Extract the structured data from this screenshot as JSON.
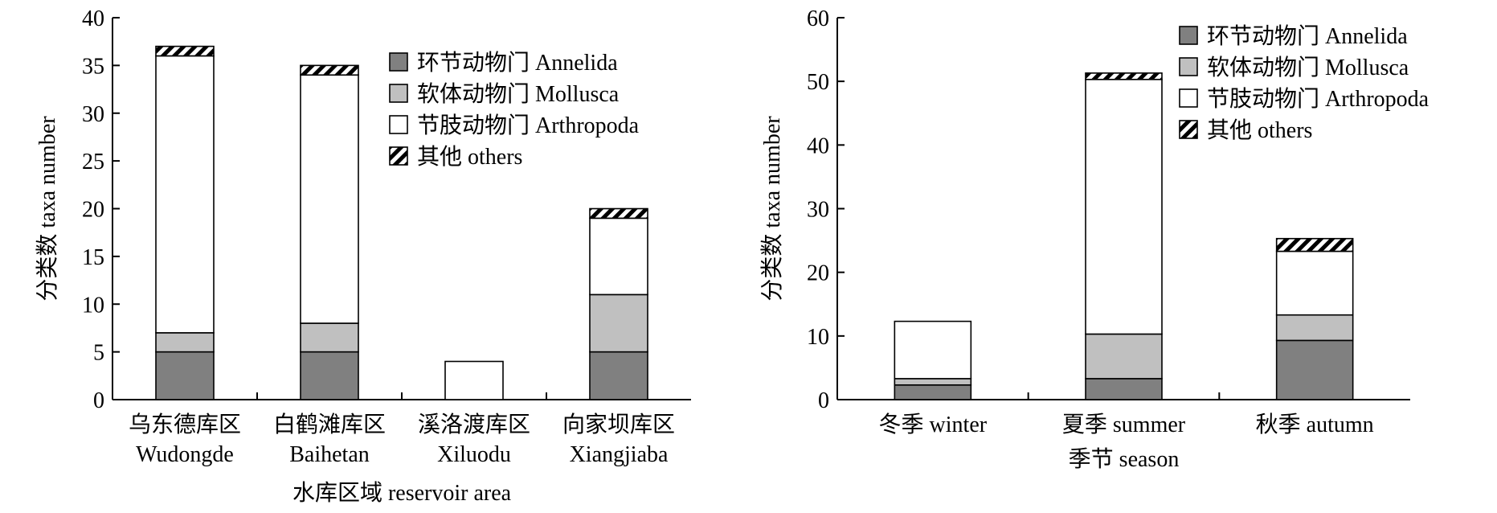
{
  "chart_data": [
    {
      "type": "bar",
      "stacked": true,
      "categories": [
        "乌东德库区\nWudongde",
        "白鹤滩库区\nBaihetan",
        "溪洛渡库区\nXiluodu",
        "向家坝库区\nXiangjiaba"
      ],
      "series": [
        {
          "name": "环节动物门 Annelida",
          "values": [
            5,
            5,
            0,
            5
          ]
        },
        {
          "name": "软体动物门 Mollusca",
          "values": [
            2,
            3,
            0,
            6
          ]
        },
        {
          "name": "节肢动物门 Arthropoda",
          "values": [
            29,
            26,
            4,
            8
          ]
        },
        {
          "name": "其他 others",
          "values": [
            1,
            1,
            0,
            1
          ]
        }
      ],
      "xlabel": "水库区域 reservoir area",
      "ylabel": "分类数 taxa number",
      "ylim": [
        0,
        40
      ],
      "yticks": [
        0,
        5,
        10,
        15,
        20,
        25,
        30,
        35,
        40
      ],
      "legend": "top-right",
      "grid": false
    },
    {
      "type": "bar",
      "stacked": true,
      "categories": [
        "冬季 winter",
        "夏季 summer",
        "秋季 autumn"
      ],
      "series": [
        {
          "name": "环节动物门 Annelida",
          "values": [
            2.3,
            3.3,
            9.3
          ]
        },
        {
          "name": "软体动物门 Mollusca",
          "values": [
            1,
            7,
            4
          ]
        },
        {
          "name": "节肢动物门 Arthropoda",
          "values": [
            9,
            40,
            10
          ]
        },
        {
          "name": "其他 others",
          "values": [
            0,
            1,
            2
          ]
        }
      ],
      "xlabel": "季节 season",
      "ylabel": "分类数 taxa number",
      "ylim": [
        0,
        60
      ],
      "yticks": [
        0,
        10,
        20,
        30,
        40,
        50,
        60
      ],
      "legend": "top-right",
      "grid": false
    }
  ],
  "colors": {
    "annelida": "#808080",
    "mollusca": "#c0c0c0",
    "arthropoda": "#ffffff",
    "others": "hatch"
  }
}
